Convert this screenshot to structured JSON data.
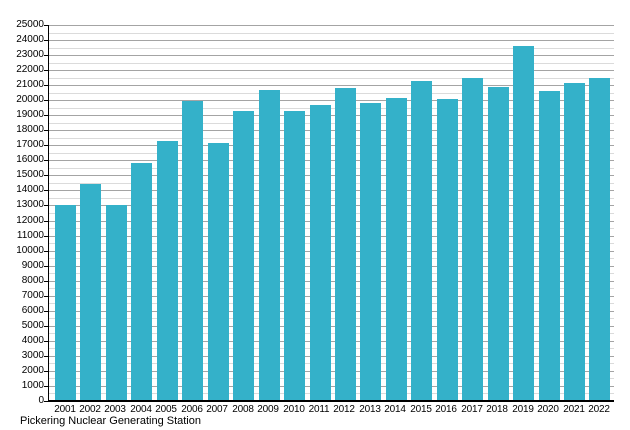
{
  "chart_data": {
    "type": "bar",
    "title": "Pickering Nuclear Generating Station",
    "categories": [
      "2001",
      "2002",
      "2003",
      "2004",
      "2005",
      "2006",
      "2007",
      "2008",
      "2009",
      "2010",
      "2011",
      "2012",
      "2013",
      "2014",
      "2015",
      "2016",
      "2017",
      "2018",
      "2019",
      "2020",
      "2021",
      "2022"
    ],
    "values": [
      13050,
      14400,
      13050,
      15800,
      17300,
      19950,
      17150,
      19250,
      20700,
      19300,
      19650,
      20800,
      19800,
      20150,
      21300,
      20050,
      21500,
      20900,
      23600,
      20600,
      21150,
      21450
    ],
    "xlabel": "",
    "ylabel": "",
    "ylim": [
      0,
      25000
    ],
    "ytick_step": 1000,
    "minor_gridline_step": 500,
    "grid": true,
    "legend_position": "none",
    "bar_color": "#34b1c9",
    "major_grid_color": "#a4a4a4",
    "minor_grid_color": "#dbdbdb",
    "axis_color": "#000000"
  }
}
